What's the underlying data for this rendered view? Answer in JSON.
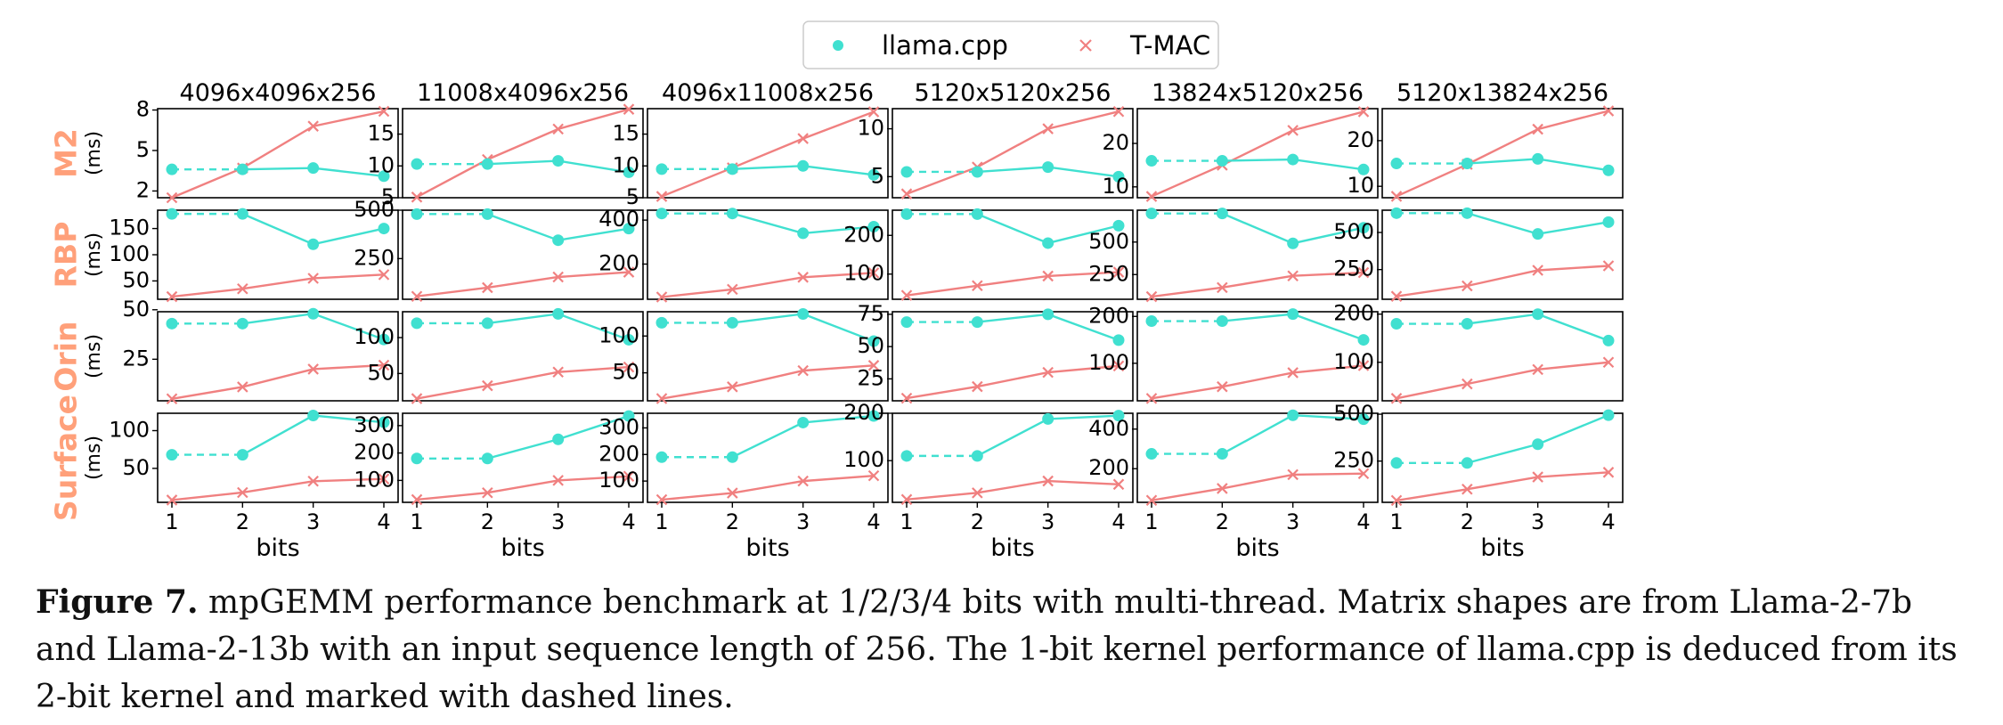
{
  "colors": {
    "llama": "#40E0D0",
    "tmac": "#F08080",
    "row_label": "#FFA07A"
  },
  "legend": {
    "llama_label": "llama.cpp",
    "tmac_label": "T-MAC",
    "placement": "top-center"
  },
  "caption": {
    "label": "Figure 7.",
    "text": "mpGEMM performance benchmark at 1/2/3/4 bits with multi-thread. Matrix shapes are from Llama-2-7b and Llama-2-13b with an input sequence length of 256. The 1-bit kernel performance of llama.cpp is deduced from its 2-bit kernel and marked with dashed lines."
  },
  "chart_data": {
    "type": "line",
    "x": [
      1,
      2,
      3,
      4
    ],
    "xlabel": "bits",
    "ylabel": "(ms)",
    "grid": false,
    "legend_placement": "top-center",
    "columns": [
      "4096x4096x256",
      "11008x4096x256",
      "4096x11008x256",
      "5120x5120x256",
      "13824x5120x256",
      "5120x13824x256"
    ],
    "rows": [
      {
        "label": "M2",
        "panels": [
          {
            "llama": [
              3.6,
              3.6,
              3.7,
              3.1
            ],
            "tmac": [
              1.5,
              3.7,
              6.8,
              7.9
            ],
            "ylim": [
              1.5,
              8.1
            ],
            "yticks": [
              2,
              5,
              8
            ]
          },
          {
            "llama": [
              10.3,
              10.3,
              10.8,
              9.0
            ],
            "tmac": [
              5.1,
              11.0,
              15.8,
              18.9
            ],
            "ylim": [
              5,
              19
            ],
            "yticks": [
              5,
              10,
              15
            ]
          },
          {
            "llama": [
              9.5,
              9.5,
              10.0,
              8.6
            ],
            "tmac": [
              5.2,
              9.7,
              14.3,
              18.5
            ],
            "ylim": [
              5,
              19
            ],
            "yticks": [
              5,
              10,
              15
            ]
          },
          {
            "llama": [
              5.5,
              5.5,
              6.0,
              5.0
            ],
            "tmac": [
              3.2,
              6.0,
              10.0,
              11.8
            ],
            "ylim": [
              2.8,
              12.1
            ],
            "yticks": [
              5,
              10
            ]
          },
          {
            "llama": [
              16.0,
              16.0,
              16.3,
              14.0
            ],
            "tmac": [
              7.8,
              15.0,
              23.0,
              27.3
            ],
            "ylim": [
              7.5,
              28
            ],
            "yticks": [
              10,
              20
            ]
          },
          {
            "llama": [
              15.0,
              15.0,
              16.0,
              13.5
            ],
            "tmac": [
              7.8,
              14.8,
              22.5,
              26.5
            ],
            "ylim": [
              7.5,
              27
            ],
            "yticks": [
              10,
              20
            ]
          }
        ]
      },
      {
        "label": "RBP",
        "panels": [
          {
            "llama": [
              178,
              178,
              120,
              150
            ],
            "tmac": [
              20,
              35,
              55,
              62
            ],
            "ylim": [
              15,
              185
            ],
            "yticks": [
              50,
              100,
              150
            ]
          },
          {
            "llama": [
              480,
              480,
              345,
              405
            ],
            "tmac": [
              55,
              100,
              155,
              180
            ],
            "ylim": [
              40,
              500
            ],
            "yticks": [
              250,
              500
            ]
          },
          {
            "llama": [
              430,
              430,
              340,
              370
            ],
            "tmac": [
              50,
              85,
              140,
              160
            ],
            "ylim": [
              40,
              445
            ],
            "yticks": [
              200,
              400
            ]
          },
          {
            "llama": [
              255,
              255,
              180,
              225
            ],
            "tmac": [
              45,
              70,
              95,
              105
            ],
            "ylim": [
              35,
              265
            ],
            "yticks": [
              100,
              200
            ]
          },
          {
            "llama": [
              720,
              720,
              490,
              610
            ],
            "tmac": [
              80,
              150,
              240,
              265
            ],
            "ylim": [
              60,
              745
            ],
            "yticks": [
              250,
              500
            ]
          },
          {
            "llama": [
              630,
              630,
              490,
              570
            ],
            "tmac": [
              70,
              140,
              245,
              275
            ],
            "ylim": [
              50,
              650
            ],
            "yticks": [
              250,
              500
            ]
          }
        ]
      },
      {
        "label": "Orin",
        "panels": [
          {
            "llama": [
              43,
              43,
              48,
              35
            ],
            "tmac": [
              5,
              11,
              20,
              22
            ],
            "ylim": [
              4,
              49
            ],
            "yticks": [
              25,
              50
            ]
          },
          {
            "llama": [
              120,
              120,
              133,
              97
            ],
            "tmac": [
              15,
              33,
              52,
              59
            ],
            "ylim": [
              12,
              136
            ],
            "yticks": [
              50,
              100
            ]
          },
          {
            "llama": [
              118,
              118,
              130,
              93
            ],
            "tmac": [
              15,
              31,
              53,
              60
            ],
            "ylim": [
              12,
              133
            ],
            "yticks": [
              50,
              100
            ]
          },
          {
            "llama": [
              69,
              69,
              75,
              55
            ],
            "tmac": [
              10,
              19,
              30,
              35
            ],
            "ylim": [
              8,
              77
            ],
            "yticks": [
              25,
              50,
              75
            ]
          },
          {
            "llama": [
              190,
              190,
              205,
              150
            ],
            "tmac": [
              25,
              50,
              80,
              95
            ],
            "ylim": [
              20,
              210
            ],
            "yticks": [
              100,
              200
            ]
          },
          {
            "llama": [
              180,
              180,
              200,
              145
            ],
            "tmac": [
              25,
              55,
              85,
              100
            ],
            "ylim": [
              20,
              205
            ],
            "yticks": [
              100,
              200
            ]
          }
        ]
      },
      {
        "label": "Surface",
        "panels": [
          {
            "llama": [
              68,
              68,
              120,
              111
            ],
            "tmac": [
              8,
              18,
              33,
              36
            ],
            "ylim": [
              5,
              123
            ],
            "yticks": [
              50,
              100
            ]
          },
          {
            "llama": [
              180,
              180,
              250,
              335
            ],
            "tmac": [
              30,
              55,
              100,
              115
            ],
            "ylim": [
              20,
              345
            ],
            "yticks": [
              100,
              200,
              300
            ]
          },
          {
            "llama": [
              190,
              190,
              320,
              345
            ],
            "tmac": [
              30,
              55,
              100,
              120
            ],
            "ylim": [
              20,
              355
            ],
            "yticks": [
              100,
              200,
              300
            ]
          },
          {
            "llama": [
              110,
              110,
              188,
              195
            ],
            "tmac": [
              18,
              32,
              57,
              50
            ],
            "ylim": [
              12,
              200
            ],
            "yticks": [
              100,
              200
            ]
          },
          {
            "llama": [
              275,
              275,
              470,
              450
            ],
            "tmac": [
              40,
              100,
              170,
              175
            ],
            "ylim": [
              30,
              480
            ],
            "yticks": [
              200,
              400
            ]
          },
          {
            "llama": [
              240,
              240,
              340,
              495
            ],
            "tmac": [
              40,
              100,
              165,
              190
            ],
            "ylim": [
              30,
              505
            ],
            "yticks": [
              250,
              500
            ]
          }
        ]
      }
    ]
  }
}
